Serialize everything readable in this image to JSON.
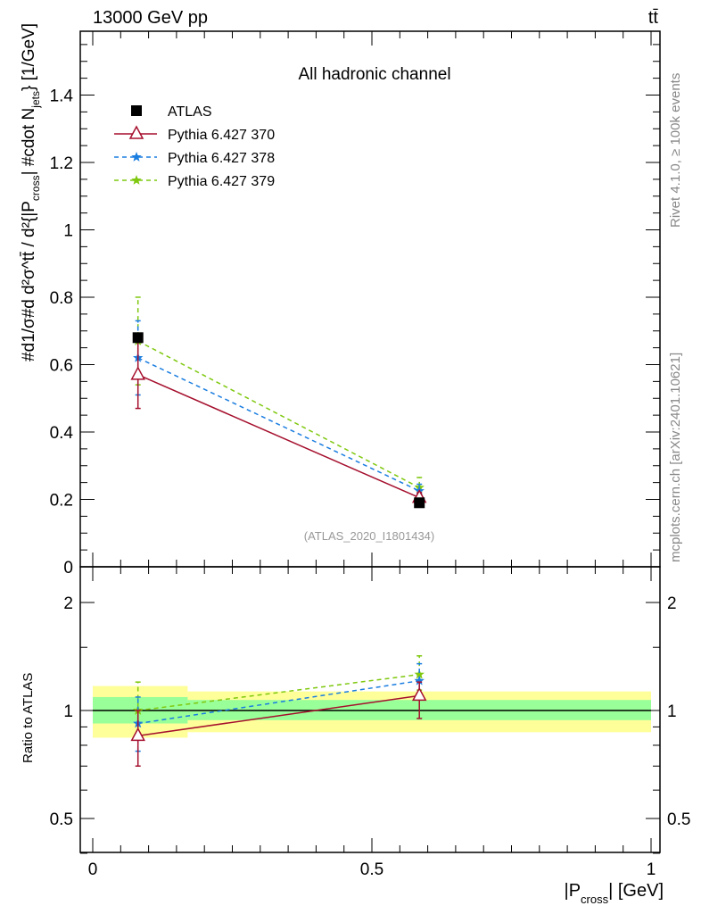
{
  "header": {
    "left": "13000 GeV pp",
    "right": "tt̄"
  },
  "side_text": {
    "rivet": "Rivet 4.1.0, ≥ 100k events",
    "mcplots": "mcplots.cern.ch [arXiv:2401.10621]"
  },
  "chart_data": [
    {
      "type": "line",
      "title": "All hadronic channel",
      "analysis_label": "(ATLAS_2020_I1801434)",
      "xlabel": "|P_cross| [GeV]",
      "ylabel": "#d^{2}σ^{tt̄}/#d|P_cross| #cdot N_jets [1/GeV]",
      "ylabel_parts": {
        "main": "#d1/σ#d d²σ^tt̄ / d²{|P",
        "sub1": "cross",
        "mid": "| #cdot N",
        "sub2": "jets",
        "tail": "} [1/GeV]"
      },
      "xlim": [
        0,
        1
      ],
      "ylim": [
        0,
        1.59
      ],
      "yticks": [
        0,
        0.2,
        0.4,
        0.6,
        0.8,
        1,
        1.2,
        1.4
      ],
      "ytick_labels": [
        "0",
        "0.2",
        "0.4",
        "0.6",
        "0.8",
        "1",
        "1.2",
        "1.4"
      ],
      "bins": [
        [
          0,
          0.17
        ],
        [
          0.17,
          1
        ]
      ],
      "x": [
        0.081,
        0.585
      ],
      "legend_position": "top-left",
      "series": [
        {
          "name": "ATLAS",
          "values": [
            0.68,
            0.19
          ],
          "err": [
            [
              0.0,
              0.0
            ],
            [
              0.0,
              0.0
            ]
          ],
          "color": "#000000",
          "marker": "square",
          "style": "none"
        },
        {
          "name": "Pythia 6.427 370",
          "values": [
            0.57,
            0.205
          ],
          "err": [
            [
              0.47,
              0.68
            ],
            [
              0.19,
              0.22
            ]
          ],
          "color": "#a50f2d",
          "marker": "triangle",
          "style": "solid"
        },
        {
          "name": "Pythia 6.427 378",
          "values": [
            0.62,
            0.225
          ],
          "err": [
            [
              0.51,
              0.73
            ],
            [
              0.205,
              0.245
            ]
          ],
          "color": "#1a7de0",
          "marker": "star",
          "style": "dashed"
        },
        {
          "name": "Pythia 6.427 379",
          "values": [
            0.67,
            0.235
          ],
          "err": [
            [
              0.54,
              0.8
            ],
            [
              0.215,
              0.265
            ]
          ],
          "color": "#7fc80f",
          "marker": "star",
          "style": "dashed"
        }
      ]
    },
    {
      "type": "line",
      "ylabel": "Ratio to ATLAS",
      "yscale": "log",
      "ylim": [
        0.4,
        2.5
      ],
      "yticks": [
        0.5,
        1,
        2
      ],
      "ytick_labels": [
        "0.5",
        "1",
        "2"
      ],
      "xticks": [
        0,
        0.5,
        1
      ],
      "xtick_labels": [
        "0",
        "0.5",
        "1"
      ],
      "bands": {
        "stat": [
          [
            0.92,
            1.09
          ],
          [
            0.94,
            1.07
          ]
        ],
        "total": [
          [
            0.84,
            1.17
          ],
          [
            0.87,
            1.13
          ]
        ],
        "stat_color": "#99ff99",
        "total_color": "#ffff99"
      },
      "series": [
        {
          "name": "Pythia 6.427 370",
          "values": [
            0.85,
            1.1
          ],
          "err": [
            [
              0.7,
              1.0
            ],
            [
              0.95,
              1.2
            ]
          ]
        },
        {
          "name": "Pythia 6.427 378",
          "values": [
            0.92,
            1.21
          ],
          "err": [
            [
              0.77,
              1.09
            ],
            [
              1.09,
              1.35
            ]
          ]
        },
        {
          "name": "Pythia 6.427 379",
          "values": [
            1.0,
            1.26
          ],
          "err": [
            [
              0.83,
              1.2
            ],
            [
              1.14,
              1.42
            ]
          ]
        }
      ]
    }
  ]
}
